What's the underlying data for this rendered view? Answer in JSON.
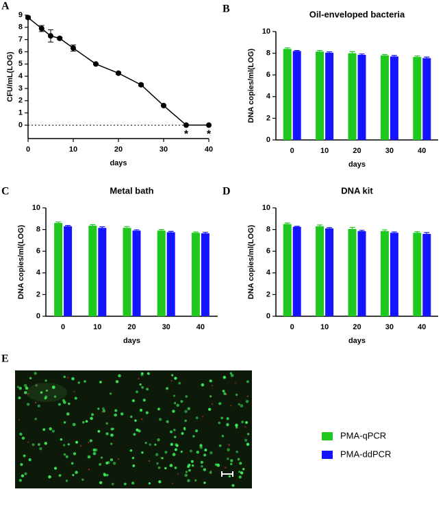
{
  "chart_data": [
    {
      "type": "line",
      "label": "A",
      "xlabel": "days",
      "ylabel": "CFU/mL(LOG)",
      "x": [
        0,
        3,
        5,
        7,
        10,
        15,
        20,
        25,
        30,
        35,
        40
      ],
      "values": [
        8.8,
        7.9,
        7.3,
        7.1,
        6.3,
        5.0,
        4.25,
        3.3,
        1.6,
        0,
        0
      ],
      "errors": [
        0.1,
        0.25,
        0.5,
        0.1,
        0.25,
        0.05,
        0.1,
        0.1,
        0.05,
        0,
        0
      ],
      "xlim": [
        0,
        40
      ],
      "xticks": [
        0,
        10,
        20,
        30,
        40
      ],
      "ylim": [
        -1.1,
        9
      ],
      "yticks": [
        0,
        1,
        2,
        3,
        4,
        5,
        6,
        7,
        8,
        9
      ],
      "reference_line": 0,
      "annotations": [
        {
          "text": "*",
          "x": 35
        },
        {
          "text": "*",
          "x": 40
        }
      ],
      "color": "#000000"
    },
    {
      "type": "bar",
      "label": "B",
      "title": "Oil-enveloped bacteria",
      "xlabel": "days",
      "ylabel": "DNA copies/ml(LOG)",
      "categories": [
        "0",
        "10",
        "20",
        "30",
        "40"
      ],
      "series": [
        {
          "name": "PMA-qPCR",
          "color": "#1ec81e",
          "values": [
            8.4,
            8.15,
            8.0,
            7.8,
            7.65
          ],
          "errors": [
            0.1,
            0.1,
            0.15,
            0.08,
            0.1
          ]
        },
        {
          "name": "PMA-ddPCR",
          "color": "#1414ff",
          "values": [
            8.2,
            8.05,
            7.85,
            7.7,
            7.55
          ],
          "errors": [
            0.05,
            0.08,
            0.08,
            0.1,
            0.1
          ]
        }
      ],
      "ylim": [
        0,
        10
      ],
      "yticks": [
        0,
        2,
        4,
        6,
        8,
        10
      ]
    },
    {
      "type": "bar",
      "label": "C",
      "title": "Metal bath",
      "xlabel": "days",
      "ylabel": "DNA copies/ml(LOG)",
      "categories": [
        "0",
        "10",
        "20",
        "30",
        "40"
      ],
      "series": [
        {
          "color": "#1ec81e",
          "values": [
            8.6,
            8.35,
            8.15,
            7.9,
            7.7
          ],
          "errors": [
            0.1,
            0.1,
            0.12,
            0.1,
            0.08
          ]
        },
        {
          "color": "#1414ff",
          "values": [
            8.3,
            8.15,
            7.9,
            7.75,
            7.65
          ],
          "errors": [
            0.08,
            0.1,
            0.08,
            0.08,
            0.1
          ]
        }
      ],
      "ylim": [
        0,
        10
      ],
      "yticks": [
        0,
        2,
        4,
        6,
        8,
        10
      ]
    },
    {
      "type": "bar",
      "label": "D",
      "title": "DNA kit",
      "xlabel": "days",
      "ylabel": "DNA copies/ml(LOG)",
      "categories": [
        "0",
        "10",
        "20",
        "30",
        "40"
      ],
      "series": [
        {
          "color": "#1ec81e",
          "values": [
            8.5,
            8.3,
            8.05,
            7.85,
            7.7
          ],
          "errors": [
            0.1,
            0.12,
            0.15,
            0.12,
            0.1
          ]
        },
        {
          "color": "#1414ff",
          "values": [
            8.25,
            8.1,
            7.85,
            7.7,
            7.6
          ],
          "errors": [
            0.05,
            0.08,
            0.08,
            0.08,
            0.12
          ]
        }
      ],
      "ylim": [
        0,
        10
      ],
      "yticks": [
        0,
        2,
        4,
        6,
        8,
        10
      ]
    }
  ],
  "panel_e": {
    "label": "E"
  }
}
